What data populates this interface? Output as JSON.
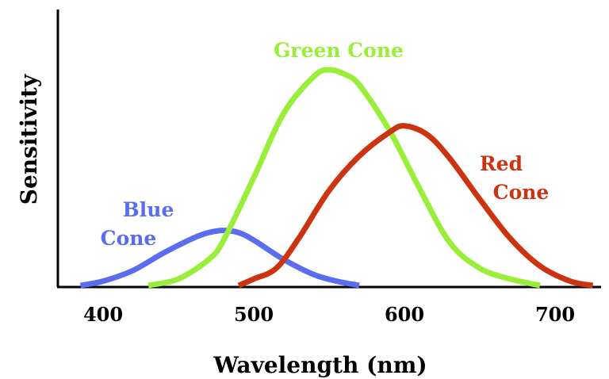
{
  "chart_data": {
    "type": "line",
    "title": "",
    "xlabel": "Wavelength (nm)",
    "ylabel": "Sensitivity",
    "x_ticks": [
      "400",
      "500",
      "600",
      "700"
    ],
    "xlim": [
      380,
      728
    ],
    "ylim": [
      0,
      1
    ],
    "grid": false,
    "legend": "none",
    "series": [
      {
        "color": "#5a6cf0",
        "x": [
          385,
          400,
          420,
          440,
          460,
          470,
          480,
          490,
          500,
          520,
          540,
          555,
          570
        ],
        "values": [
          0.0,
          0.02,
          0.07,
          0.15,
          0.22,
          0.245,
          0.255,
          0.245,
          0.21,
          0.12,
          0.05,
          0.02,
          0.0
        ]
      },
      {
        "color": "#99ee3a",
        "x": [
          430,
          450,
          470,
          480,
          500,
          520,
          540,
          550,
          560,
          570,
          590,
          610,
          630,
          650,
          670,
          690
        ],
        "values": [
          0.0,
          0.03,
          0.12,
          0.21,
          0.5,
          0.8,
          0.97,
          1.0,
          0.98,
          0.93,
          0.72,
          0.45,
          0.2,
          0.08,
          0.03,
          0.0
        ]
      },
      {
        "color": "#cc3311",
        "x": [
          490,
          500,
          515,
          530,
          550,
          570,
          590,
          600,
          615,
          630,
          650,
          670,
          690,
          710,
          725
        ],
        "values": [
          0.0,
          0.03,
          0.08,
          0.22,
          0.44,
          0.6,
          0.71,
          0.74,
          0.7,
          0.59,
          0.4,
          0.22,
          0.09,
          0.02,
          0.0
        ]
      }
    ],
    "annotations": [
      {
        "lines": [
          "Blue",
          "Cone"
        ],
        "color": "#5a6cf0"
      },
      {
        "lines": [
          "Green Cone"
        ],
        "color": "#99ee3a"
      },
      {
        "lines": [
          "Red",
          "Cone"
        ],
        "color": "#cc3311"
      }
    ]
  }
}
